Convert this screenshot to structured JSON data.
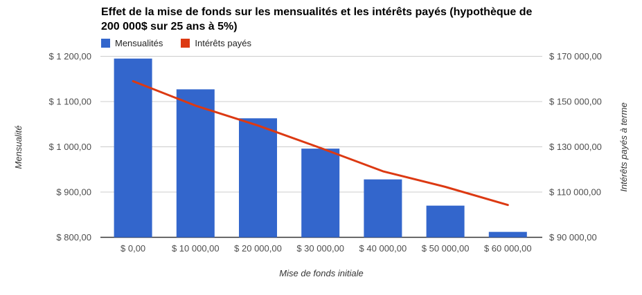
{
  "title": {
    "line1": "Effet de la mise de fonds sur les mensualités et les intérêts payés (hypothèque de",
    "line2": "200 000$ sur 25 ans à 5%)"
  },
  "legend": {
    "items": [
      {
        "label": "Mensualités",
        "color": "#3366CC"
      },
      {
        "label": "Intérêts payés",
        "color": "#DC3912"
      }
    ]
  },
  "chart_data": {
    "type": "bar+line combo (dual y-axes)",
    "title": "Effet de la mise de fonds sur les mensualités et les intérêts payés (hypothèque de 200 000$ sur 25 ans à 5%)",
    "categories": [
      "$ 0,00",
      "$ 10 000,00",
      "$ 20 000,00",
      "$ 30 000,00",
      "$ 40 000,00",
      "$ 50 000,00",
      "$ 60 000,00"
    ],
    "series": [
      {
        "name": "Mensualités",
        "type": "bar",
        "axis": "left",
        "color": "#3366CC",
        "values": [
          1195,
          1127,
          1063,
          996,
          928,
          870,
          812
        ]
      },
      {
        "name": "Intérêts payés",
        "type": "line",
        "axis": "right",
        "color": "#DC3912",
        "values": [
          159000,
          148200,
          139400,
          129500,
          119200,
          112300,
          104300
        ]
      }
    ],
    "x_axis": {
      "title": "Mise de fonds initiale"
    },
    "left_axis": {
      "title": "Mensualité",
      "range": [
        800,
        1200
      ],
      "ticks": [
        {
          "value": 800,
          "label": "$ 800,00"
        },
        {
          "value": 900,
          "label": "$ 900,00"
        },
        {
          "value": 1000,
          "label": "$ 1 000,00"
        },
        {
          "value": 1100,
          "label": "$ 1 100,00"
        },
        {
          "value": 1200,
          "label": "$ 1 200,00"
        }
      ]
    },
    "right_axis": {
      "title": "Intérêts payés à terme",
      "range": [
        90000,
        170000
      ],
      "ticks": [
        {
          "value": 90000,
          "label": "$ 90 000,00"
        },
        {
          "value": 110000,
          "label": "$ 110 000,00"
        },
        {
          "value": 130000,
          "label": "$ 130 000,00"
        },
        {
          "value": 150000,
          "label": "$ 150 000,00"
        },
        {
          "value": 170000,
          "label": "$ 170 000,00"
        }
      ]
    },
    "grid": true,
    "legend_position": "top-left",
    "colors": {
      "grid_line": "#cccccc",
      "base_line": "#333333",
      "tick_label": "#4d4d4d",
      "axis_title": "#333333"
    }
  }
}
